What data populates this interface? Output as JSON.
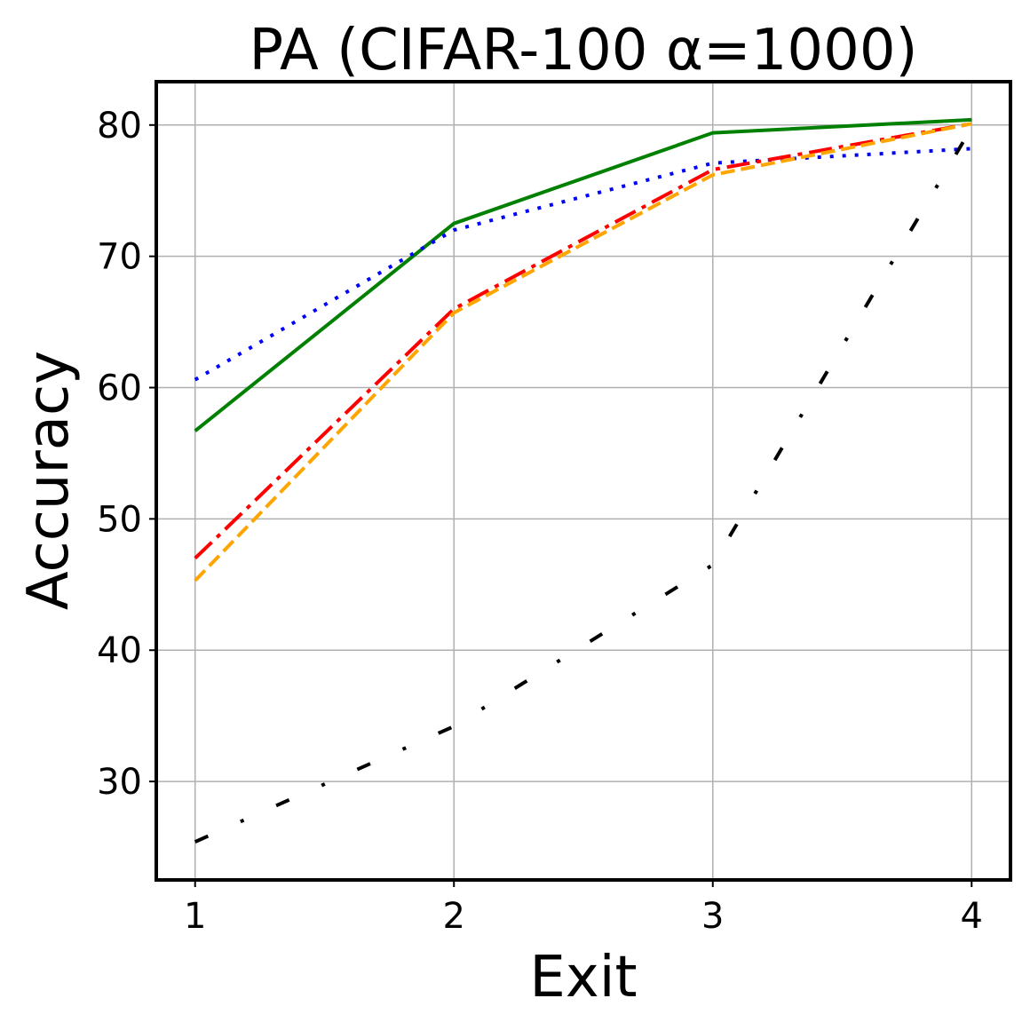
{
  "chart_data": {
    "type": "line",
    "title": "PA (CIFAR-100 α=1000)",
    "xlabel": "Exit",
    "ylabel": "Accuracy",
    "x": [
      1,
      2,
      3,
      4
    ],
    "xlim": [
      0.85,
      4.15
    ],
    "ylim": [
      22.5,
      83.3
    ],
    "xticks": [
      1,
      2,
      3,
      4
    ],
    "yticks": [
      30,
      40,
      50,
      60,
      70,
      80
    ],
    "grid": true,
    "series": [
      {
        "values": [
          56.7,
          72.5,
          79.4,
          80.4
        ],
        "color": "#008000",
        "style": "solid"
      },
      {
        "values": [
          60.6,
          72.0,
          77.1,
          78.2
        ],
        "color": "#0000ff",
        "style": "dotted"
      },
      {
        "values": [
          47.0,
          66.0,
          76.6,
          80.1
        ],
        "color": "#ff0000",
        "style": "dashdot"
      },
      {
        "values": [
          45.3,
          65.7,
          76.2,
          80.1
        ],
        "color": "#ffa500",
        "style": "dashed"
      },
      {
        "values": [
          25.4,
          34.2,
          46.5,
          79.8
        ],
        "color": "#000000",
        "style": "loosedashdot"
      }
    ]
  }
}
